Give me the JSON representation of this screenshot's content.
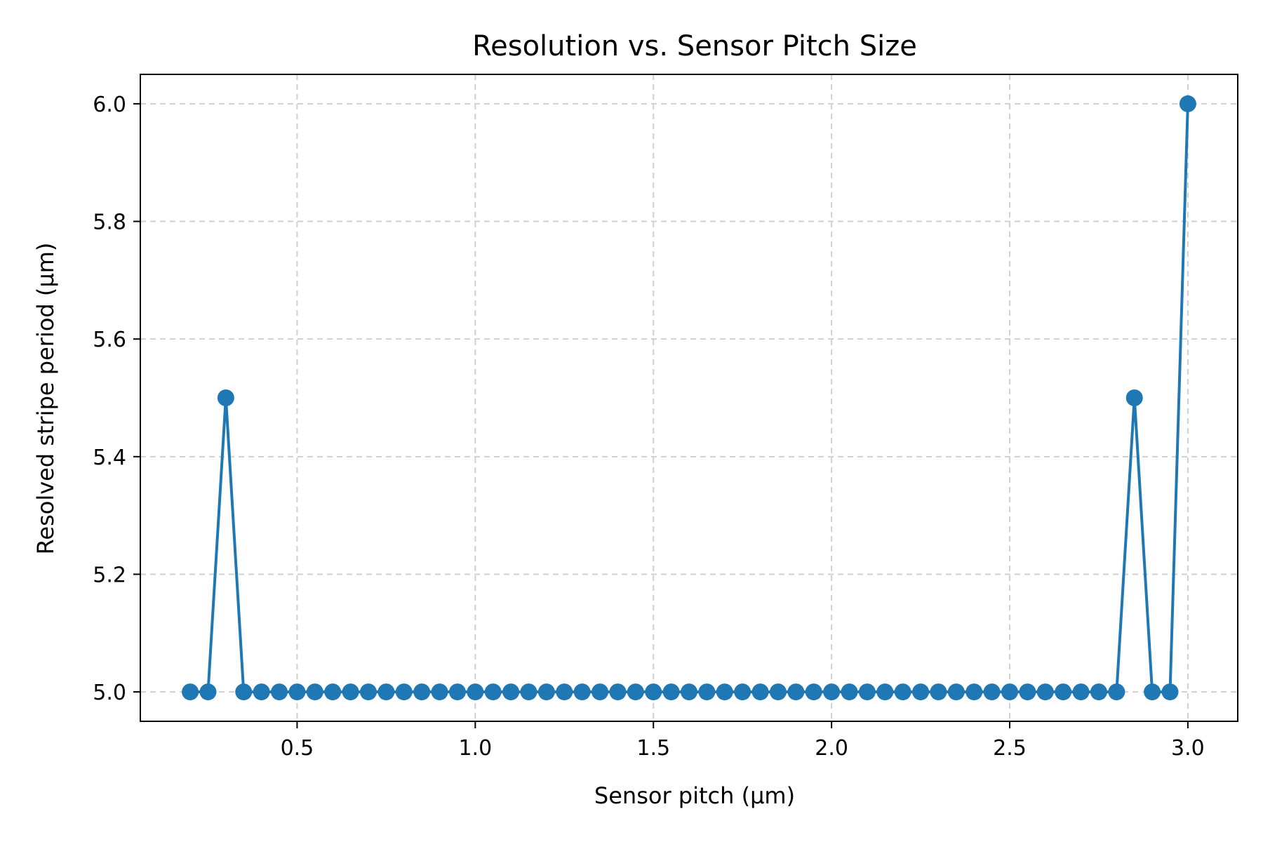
{
  "chart_data": {
    "type": "line",
    "title": "Resolution vs. Sensor Pitch Size",
    "xlabel": "Sensor pitch (µm)",
    "ylabel": "Resolved stripe period (µm)",
    "xlim": [
      0.06,
      3.14
    ],
    "ylim": [
      4.95,
      6.05
    ],
    "xticks": [
      0.5,
      1.0,
      1.5,
      2.0,
      2.5,
      3.0
    ],
    "xtick_labels": [
      "0.5",
      "1.0",
      "1.5",
      "2.0",
      "2.5",
      "3.0"
    ],
    "yticks": [
      5.0,
      5.2,
      5.4,
      5.6,
      5.8,
      6.0
    ],
    "ytick_labels": [
      "5.0",
      "5.2",
      "5.4",
      "5.6",
      "5.8",
      "6.0"
    ],
    "grid": true,
    "legend": false,
    "series": [
      {
        "color": "#1f77b4",
        "marker": "circle",
        "x": [
          0.2,
          0.25,
          0.3,
          0.35,
          0.4,
          0.45,
          0.5,
          0.55,
          0.6,
          0.65,
          0.7,
          0.75,
          0.8,
          0.85,
          0.9,
          0.95,
          1.0,
          1.05,
          1.1,
          1.15,
          1.2,
          1.25,
          1.3,
          1.35,
          1.4,
          1.45,
          1.5,
          1.55,
          1.6,
          1.65,
          1.7,
          1.75,
          1.8,
          1.85,
          1.9,
          1.95,
          2.0,
          2.05,
          2.1,
          2.15,
          2.2,
          2.25,
          2.3,
          2.35,
          2.4,
          2.45,
          2.5,
          2.55,
          2.6,
          2.65,
          2.7,
          2.75,
          2.8,
          2.85,
          2.9,
          2.95,
          3.0
        ],
        "values": [
          5.0,
          5.0,
          5.5,
          5.0,
          5.0,
          5.0,
          5.0,
          5.0,
          5.0,
          5.0,
          5.0,
          5.0,
          5.0,
          5.0,
          5.0,
          5.0,
          5.0,
          5.0,
          5.0,
          5.0,
          5.0,
          5.0,
          5.0,
          5.0,
          5.0,
          5.0,
          5.0,
          5.0,
          5.0,
          5.0,
          5.0,
          5.0,
          5.0,
          5.0,
          5.0,
          5.0,
          5.0,
          5.0,
          5.0,
          5.0,
          5.0,
          5.0,
          5.0,
          5.0,
          5.0,
          5.0,
          5.0,
          5.0,
          5.0,
          5.0,
          5.0,
          5.0,
          5.0,
          5.5,
          5.0,
          5.0,
          6.0
        ]
      }
    ]
  }
}
